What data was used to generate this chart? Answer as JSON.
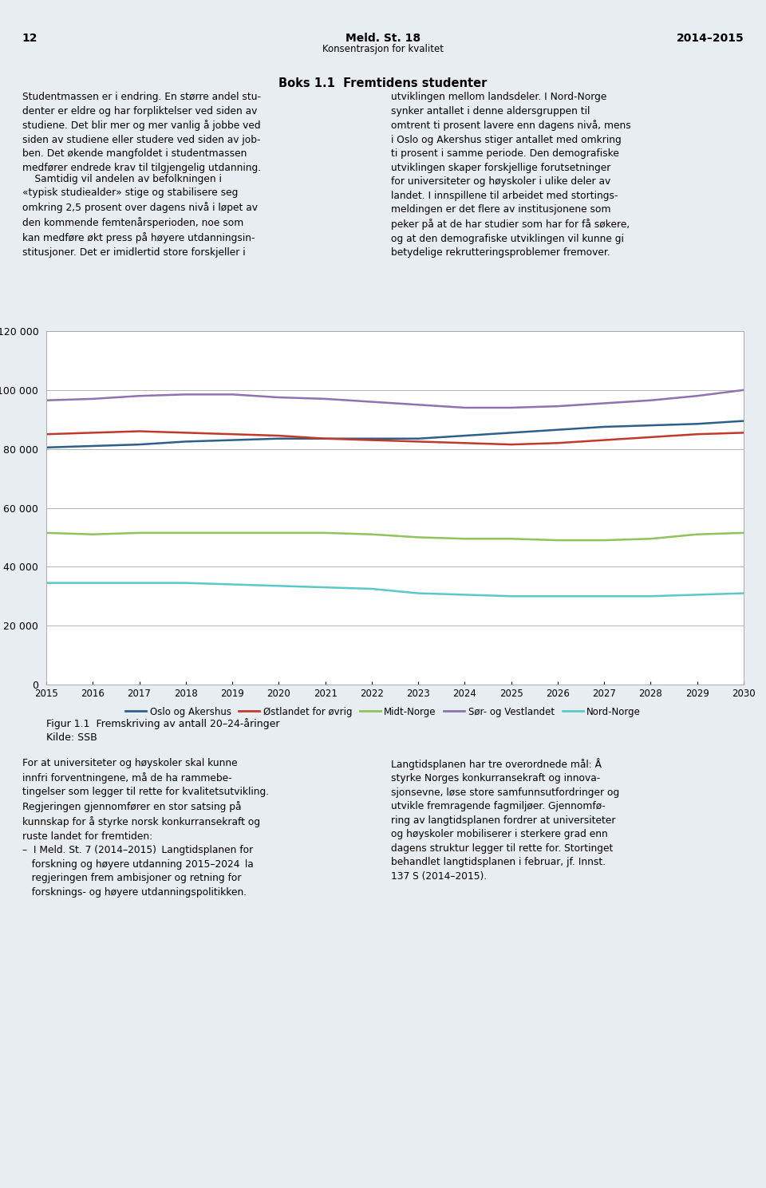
{
  "years": [
    2015,
    2016,
    2017,
    2018,
    2019,
    2020,
    2021,
    2022,
    2023,
    2024,
    2025,
    2026,
    2027,
    2028,
    2029,
    2030
  ],
  "oslo_akershus": [
    80500,
    81000,
    81500,
    82500,
    83000,
    83500,
    83500,
    83500,
    83500,
    84500,
    85500,
    86500,
    87500,
    88000,
    88500,
    89500
  ],
  "ostlandet": [
    85000,
    85500,
    86000,
    85500,
    85000,
    84500,
    83500,
    83000,
    82500,
    82000,
    81500,
    82000,
    83000,
    84000,
    85000,
    85500
  ],
  "midt_norge": [
    51500,
    51000,
    51500,
    51500,
    51500,
    51500,
    51500,
    51000,
    50000,
    49500,
    49500,
    49000,
    49000,
    49500,
    51000,
    51500
  ],
  "sor_vestlandet": [
    96500,
    97000,
    98000,
    98500,
    98500,
    97500,
    97000,
    96000,
    95000,
    94000,
    94000,
    94500,
    95500,
    96500,
    98000,
    100000
  ],
  "nord_norge": [
    34500,
    34500,
    34500,
    34500,
    34000,
    33500,
    33000,
    32500,
    31000,
    30500,
    30000,
    30000,
    30000,
    30000,
    30500,
    31000
  ],
  "line_colors": {
    "oslo_akershus": "#2e5f8a",
    "ostlandet": "#c0392b",
    "midt_norge": "#8dc45b",
    "sor_vestlandet": "#8e72b2",
    "nord_norge": "#5bc8c8"
  },
  "legend_labels": [
    "Oslo og Akershus",
    "Østlandet for øvrig",
    "Midt-Norge",
    "Sør- og Vestlandet",
    "Nord-Norge"
  ],
  "ylim": [
    0,
    120000
  ],
  "yticks": [
    0,
    20000,
    40000,
    60000,
    80000,
    100000,
    120000
  ],
  "fig_caption": "Figur 1.1  Fremskriving av antall 20–24-åringer",
  "source": "Kilde: SSB",
  "page_num": "12",
  "header_title": "Meld. St. 18",
  "header_sub": "Konsentrasjon for kvalitet",
  "header_right": "2014–2015",
  "box_title": "Boks 1.1  Fremtidens studenter",
  "text_left_1": "Studentmassen er i endring. En større andel stu-\ndenter er eldre og har forpliktelser ved siden av\nstudiene. Det blir mer og mer vanlig å jobbe ved\nsiden av studiene eller studere ved siden av job-\nben. Det økende mangfoldet i studentmassen\nmedفører endrede krav til tilgjengelig utdanning.",
  "text_left_2": "    Samtidig vil andelen av befolkningen i\n«typisk studiealder» stige og stabilisere seg\nomkring 2,5 prosent over dagens nivå i løpet av\nden kommende femtenårsperioden, noe som\nkan medføre økt press på høyere utdanningsin-\nstitusjoner. Det er imidlertid store forskjeller i",
  "text_right_1": "utviklingen mellom landsdeler. I Nord-Norge\nsynker antallet i denne aldersgruppen til\nomtrent ti prosent lavere enn dagens nivå, mens\ni Oslo og Akershus stiger antallet med omkring\nti prosent i samme periode. Den demografiske\nutviklingen skaper forskjellige forutsetninger\nfor universiteter og høyskoler i ulike deler av\nlandet. I innspillene til arbeidet med stortings-\nmeldingen er det flere av institusjonene som\npeker på at de har studier som har for få søkere,\nog at den demografiske utviklingen vil kunne gi\nbetydelige rekrutteringsproblemer fremover.",
  "bottom_left": "For at universiteter og høyskoler skal kunne\ninnfri forventningene, må de ha rammebe-\ntingelser som legger til rette for kvalitetsutvikling.\nRegjeringen gjennomfører en stor satsing på\nkunnskap for å styrke norsk konkurransekraft og\nruste landet for fremtiden:\n–  I Meld. St. 7 (2014–2015) Langtidsplanen for\n   forskning og høyere utdanning 2015–2024 la\n   regjeringen frem ambisjoner og retning for\n   forsknings- og høyere utdanningspolitikken.",
  "bottom_right": "Langtidsplanen har tre overordnede mål: Å\nstyrke Norges konkurransekraft og innova-\nsjonsevne, løse store samfunnsutfordringer og\nutvikle fremragende fagmiljøer. Gjennomfø-\nring av langtidsplanen fordrer at universiteter\nog høyskoler mobiliserer i sterkere grad enn\ndagens struktur legger til rette for. Stortinget\nbehandlet langtidsplanen i februar, jf. Innst.\n137 S (2014–2015).",
  "page_bg": "#e8edf2",
  "content_bg": "#ffffff",
  "box_bg": "#dce6f0"
}
